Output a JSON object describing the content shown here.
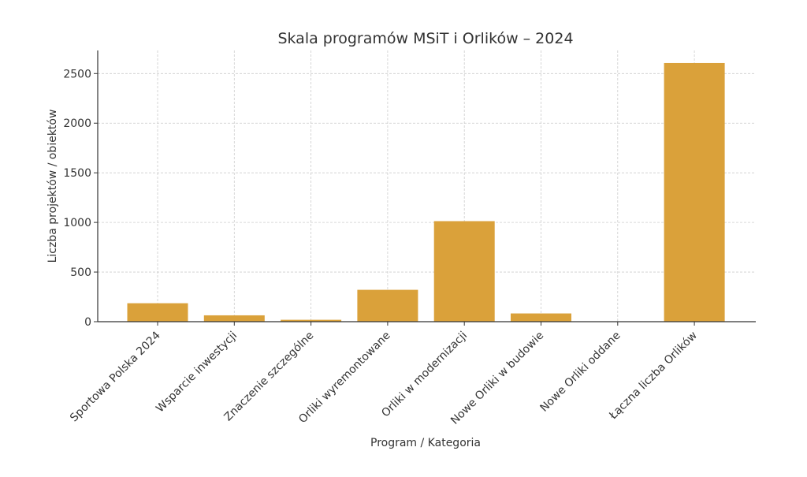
{
  "chart_data": {
    "type": "bar",
    "title": "Skala programów MSiT i Orlików – 2024",
    "xlabel": "Program / Kategoria",
    "ylabel": "Liczba projektów / obiektów",
    "categories": [
      "Sportowa Polska 2024",
      "Wsparcie inwestycji",
      "Znaczenie szczególne",
      "Orliki wyremontowane",
      "Orliki w modernizacji",
      "Nowe Orliki w budowie",
      "Nowe Orliki oddane",
      "Łączna liczba Orlików"
    ],
    "values": [
      186,
      64,
      19,
      321,
      1013,
      83,
      0,
      2606
    ],
    "ylim": [
      0,
      2730
    ],
    "yticks": [
      0,
      500,
      1000,
      1500,
      2000,
      2500
    ],
    "grid": true,
    "bar_color": "#DAA13A"
  }
}
